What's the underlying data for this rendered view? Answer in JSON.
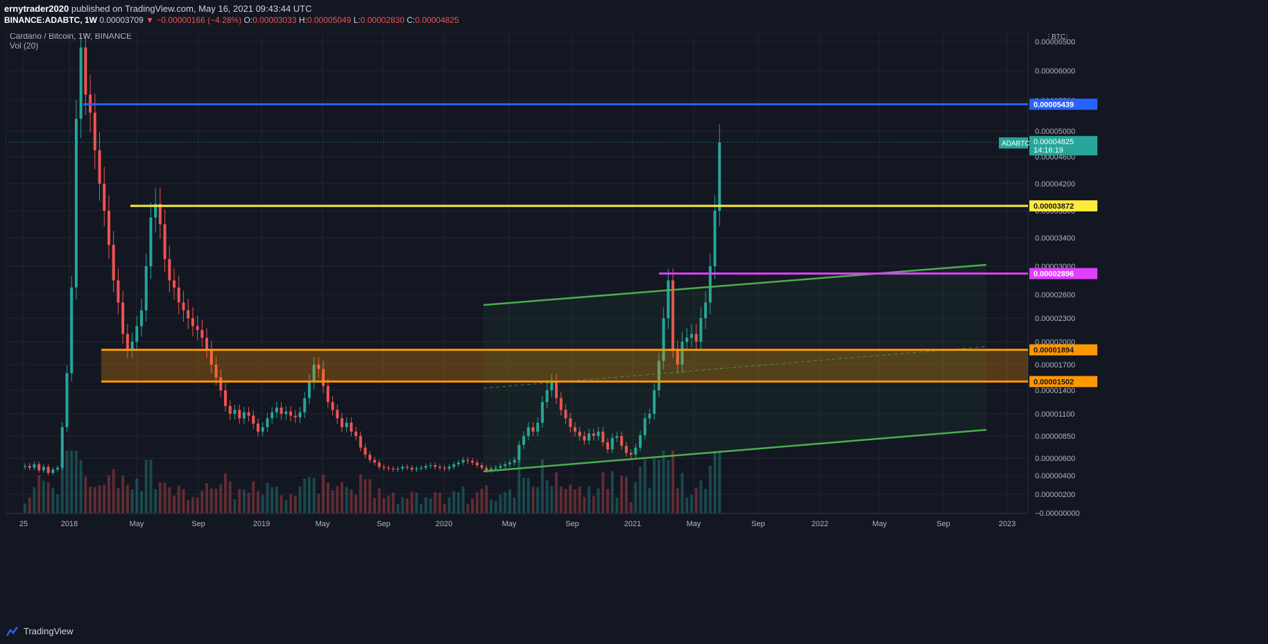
{
  "header": {
    "author": "ernytrader2020",
    "published_text": "published on TradingView.com, May 16, 2021 09:43:44 UTC",
    "symbol": "BINANCE:ADABTC, 1W",
    "last": "0.00003709",
    "change": "−0.00000166 (−4.28%)",
    "o_label": "O:",
    "o": "0.00003033",
    "h_label": "H:",
    "h": "0.00005049",
    "l_label": "L:",
    "l": "0.00002830",
    "c_label": "C:",
    "c": "0.00004825"
  },
  "legend": {
    "title": "Cardano / Bitcoin, 1W, BINANCE",
    "volume": "Vol (20)"
  },
  "footer": {
    "brand": "TradingView"
  },
  "colors": {
    "up": "#26a69a",
    "down": "#ef5350",
    "blue_line": "#2962ff",
    "yellow_line": "#ffeb3b",
    "magenta_line": "#e040fb",
    "orange": "#ff9800",
    "channel": "#4caf50",
    "bg": "#131722",
    "grid": "#1f2433"
  },
  "chart_data": {
    "type": "candlestick",
    "title": "Cardano / Bitcoin, 1W, BINANCE",
    "y_axis_unit": "BTC",
    "y_ticks": [
      "0.00006500",
      "0.00006000",
      "0.00005500",
      "0.00005000",
      "0.00004600",
      "0.00004200",
      "0.00003800",
      "0.00003400",
      "0.00003000",
      "0.00002600",
      "0.00002300",
      "0.00002000",
      "0.00001700",
      "0.00001400",
      "0.00001100",
      "0.00000850",
      "0.00000600",
      "0.00000400",
      "0.00000200",
      "−0.00000000"
    ],
    "x_ticks": [
      "25",
      "2018",
      "May",
      "Sep",
      "2019",
      "May",
      "Sep",
      "2020",
      "May",
      "Sep",
      "2021",
      "May",
      "Sep",
      "2022",
      "May",
      "Sep",
      "2023"
    ],
    "horizontal_levels": [
      {
        "value": "0.00005439",
        "color": "#2962ff",
        "name": "blue"
      },
      {
        "value": "0.00003872",
        "color": "#ffeb3b",
        "name": "yellow"
      },
      {
        "value": "0.00002896",
        "color": "#e040fb",
        "name": "magenta"
      },
      {
        "value": "0.00001894",
        "color": "#ff9800",
        "name": "orange-top"
      },
      {
        "value": "0.00001502",
        "color": "#ff9800",
        "name": "orange-bottom"
      }
    ],
    "last_price": {
      "symbol": "ADABTC",
      "value": "0.00004825",
      "countdown": "14:16:19"
    },
    "closes": [
      5.1e-06,
      4.9e-06,
      5.3e-06,
      4.6e-06,
      5e-06,
      4.3e-06,
      4.7e-06,
      4.9e-06,
      9.5e-06,
      1.6e-05,
      2.7e-05,
      5.2e-05,
      6.4e-05,
      5.6e-05,
      5.3e-05,
      4.7e-05,
      4.2e-05,
      3.8e-05,
      3.3e-05,
      2.8e-05,
      2.5e-05,
      2.1e-05,
      1.9e-05,
      2e-05,
      2.2e-05,
      2.4e-05,
      3e-05,
      3.7e-05,
      3.9e-05,
      3.6e-05,
      3.1e-05,
      2.8e-05,
      2.7e-05,
      2.5e-05,
      2.4e-05,
      2.3e-05,
      2.2e-05,
      2.15e-05,
      2.05e-05,
      1.9e-05,
      1.7e-05,
      1.55e-05,
      1.4e-05,
      1.2e-05,
      1.1e-05,
      1.15e-05,
      1.05e-05,
      1.12e-05,
      1.08e-05,
      9.9e-06,
      9e-06,
      9.5e-06,
      1.05e-05,
      1.12e-05,
      1.18e-05,
      1.1e-05,
      1.13e-05,
      1.08e-05,
      1.06e-05,
      1.12e-05,
      1.3e-05,
      1.5e-05,
      1.7e-05,
      1.65e-05,
      1.45e-05,
      1.25e-05,
      1.15e-05,
      1.05e-05,
      9.5e-06,
      1e-05,
      9e-06,
      8.5e-06,
      7.2e-06,
      6.4e-06,
      5.8e-06,
      5.5e-06,
      5e-06,
      4.9e-06,
      4.8e-06,
      4.7e-06,
      4.8e-06,
      5e-06,
      4.9e-06,
      4.7e-06,
      4.8e-06,
      4.9e-06,
      5.1e-06,
      5.2e-06,
      5e-06,
      4.9e-06,
      4.8e-06,
      5e-06,
      5.3e-06,
      5.5e-06,
      5.8e-06,
      5.7e-06,
      5.5e-06,
      5.2e-06,
      4.9e-06,
      4.6e-06,
      4.8e-06,
      4.9e-06,
      5.1e-06,
      5.3e-06,
      5.5e-06,
      5.8e-06,
      7.5e-06,
      8.5e-06,
      9.5e-06,
      9e-06,
      1e-05,
      1.25e-05,
      1.4e-05,
      1.5e-05,
      1.3e-05,
      1.15e-05,
      1.05e-05,
      9.5e-06,
      9e-06,
      8.5e-06,
      8e-06,
      8.8e-06,
      8.5e-06,
      9e-06,
      7.8e-06,
      7e-06,
      8.3e-06,
      8.5e-06,
      7.4e-06,
      6.6e-06,
      6.4e-06,
      7.2e-06,
      8.6e-06,
      1.05e-05,
      1.1e-05,
      1.4e-05,
      1.75e-05,
      2.3e-05,
      2.8e-05,
      1.9e-05,
      1.7e-05,
      2e-05,
      2.05e-05,
      2.1e-05,
      2e-05,
      2.3e-05,
      2.5e-05,
      3e-05,
      3.8e-05,
      4.82e-05
    ]
  }
}
